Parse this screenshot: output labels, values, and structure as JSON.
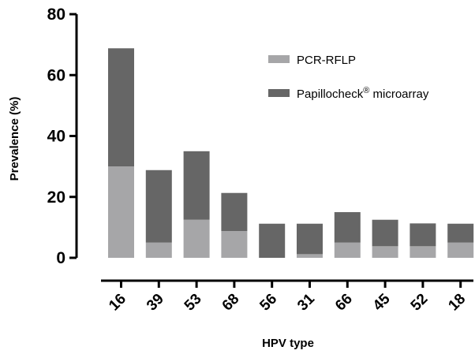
{
  "chart_data": {
    "type": "bar",
    "stacked": true,
    "xlabel": "HPV type",
    "ylabel": "Prevalence (%)",
    "ylim": [
      0,
      80
    ],
    "yticks": [
      0,
      20,
      40,
      60,
      80
    ],
    "categories": [
      "16",
      "39",
      "53",
      "68",
      "56",
      "31",
      "66",
      "45",
      "52",
      "18"
    ],
    "series": [
      {
        "name": "PCR-RFLP",
        "color": "#a6a6a8",
        "values": [
          30.0,
          5.0,
          12.5,
          8.8,
          0.0,
          1.2,
          5.0,
          3.8,
          3.8,
          5.0
        ]
      },
      {
        "name": "Papillocheck",
        "name_superscript": "®",
        "name_suffix": " microarray",
        "color": "#666666",
        "values": [
          38.8,
          23.8,
          22.5,
          12.5,
          11.2,
          10.0,
          10.0,
          8.7,
          7.5,
          6.2
        ]
      }
    ],
    "legend_position": "top-right",
    "grid": false
  }
}
